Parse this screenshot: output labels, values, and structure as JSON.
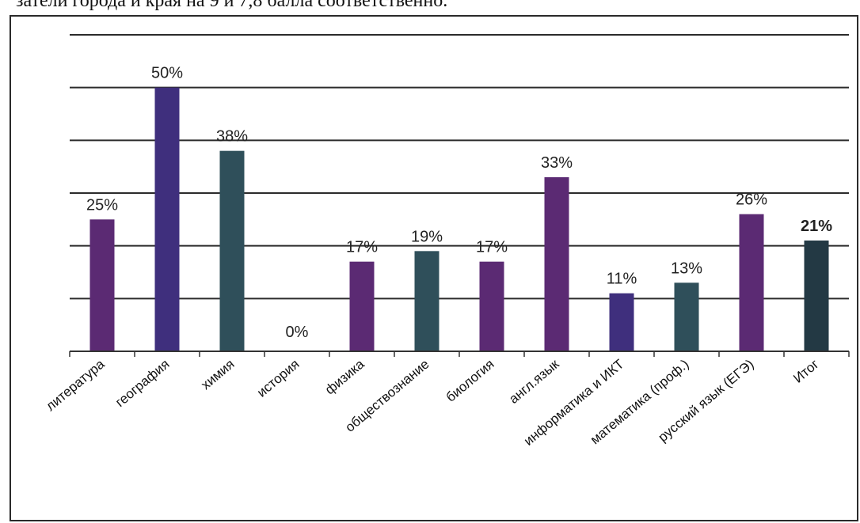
{
  "header": {
    "text": "затели города и края на 9 и 7,8 балла соответственно."
  },
  "chart_data": {
    "type": "bar",
    "title": "",
    "xlabel": "",
    "ylabel": "",
    "ylim": [
      0,
      60
    ],
    "grid": true,
    "categories": [
      "литература",
      "география",
      "химия",
      "история",
      "физика",
      "обществознание",
      "биология",
      "англ.язык",
      "информатика и ИКТ",
      "математика (проф.)",
      "русский язык (ЕГЭ)",
      "Итог"
    ],
    "values": [
      25,
      50,
      38,
      0,
      17,
      19,
      17,
      33,
      11,
      13,
      26,
      21
    ],
    "data_labels": [
      "25%",
      "50%",
      "38%",
      "0%",
      "17%",
      "19%",
      "17%",
      "33%",
      "11%",
      "13%",
      "26%",
      "21%"
    ],
    "bar_colors": [
      "#5b2a73",
      "#3f2f7d",
      "#2f4f5a",
      "#3f2f7d",
      "#5b2a73",
      "#2f4f5a",
      "#5b2a73",
      "#5b2a73",
      "#3f2f7d",
      "#2f4f5a",
      "#5b2a73",
      "#233944"
    ],
    "bold_labels": [
      false,
      false,
      false,
      false,
      false,
      false,
      false,
      false,
      false,
      false,
      false,
      true
    ]
  }
}
